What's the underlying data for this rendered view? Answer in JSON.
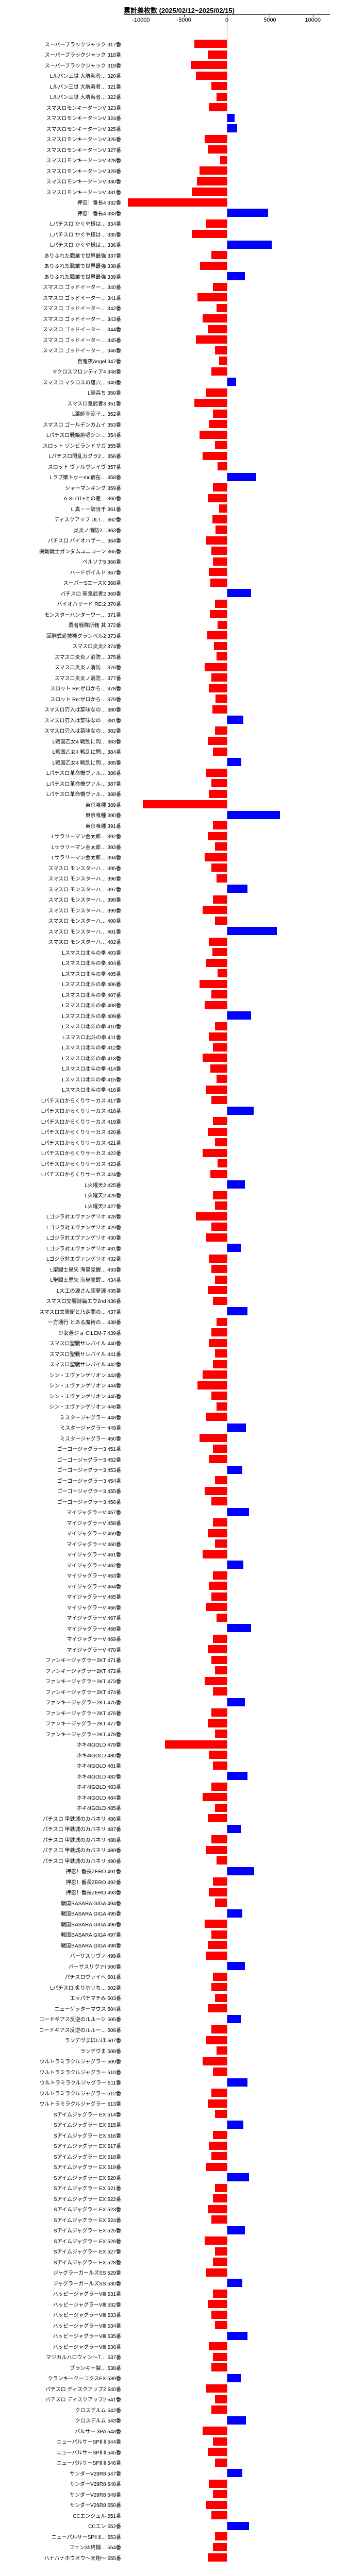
{
  "chart": {
    "title": "累計差枚数 (2025/02/12~2025/02/15)",
    "title_fontsize": 13,
    "type": "bar-horizontal",
    "xmin": -12000,
    "xmax": 12000,
    "ticks": [
      -10000,
      -5000,
      0,
      5000,
      10000
    ],
    "colors": {
      "neg": "#ff0000",
      "pos": "#0000ff",
      "axis": "#000000",
      "bg": "#ffffff"
    },
    "label_fontsize": 10,
    "rows": [
      {
        "label": "スーパーブラックジャック 317番",
        "value": -3800
      },
      {
        "label": "スーパーブラックジャック 318番",
        "value": -2200
      },
      {
        "label": "スーパーブラックジャック 319番",
        "value": -4200
      },
      {
        "label": "Lルパン三世 大航海者… 320番",
        "value": -3600
      },
      {
        "label": "Lルパン三世 大航海者… 321番",
        "value": -1800
      },
      {
        "label": "Lルパン三世 大航海者… 322番",
        "value": -1200
      },
      {
        "label": "スマスロモンキーターンV 323番",
        "value": -2100
      },
      {
        "label": "スマスロモンキーターンV 324番",
        "value": 900
      },
      {
        "label": "スマスロモンキーターンV 325番",
        "value": 1200
      },
      {
        "label": "スマスロモンキーターンV 326番",
        "value": -2600
      },
      {
        "label": "スマスロモンキーターンV 327番",
        "value": -2200
      },
      {
        "label": "スマスロモンキーターンV 328番",
        "value": -800
      },
      {
        "label": "スマスロモンキーターンV 329番",
        "value": -3200
      },
      {
        "label": "スマスロモンキーターンV 330番",
        "value": -3500
      },
      {
        "label": "スマスロモンキーターンV 331番",
        "value": -4100
      },
      {
        "label": "押忍！番長4 332番",
        "value": -11500
      },
      {
        "label": "押忍！番長4 333番",
        "value": 4800
      },
      {
        "label": "Lパチスロ かぐや様は… 334番",
        "value": -2400
      },
      {
        "label": "Lパチスロ かぐや様は… 335番",
        "value": -4100
      },
      {
        "label": "Lパチスロ かぐや様は… 336番",
        "value": 5200
      },
      {
        "label": "ありふれた職業で世界最強 337番",
        "value": -1800
      },
      {
        "label": "ありふれた職業で世界最強 338番",
        "value": -3100
      },
      {
        "label": "ありふれた職業で世界最強 339番",
        "value": 2100
      },
      {
        "label": "スマスロ ゴッドイーター… 340番",
        "value": -1600
      },
      {
        "label": "スマスロ ゴッドイーター… 341番",
        "value": -3400
      },
      {
        "label": "スマスロ ゴッドイーター… 342番",
        "value": -1200
      },
      {
        "label": "スマスロ ゴッドイーター… 343番",
        "value": -2800
      },
      {
        "label": "スマスロ ゴッドイーター… 344番",
        "value": -2200
      },
      {
        "label": "スマスロ ゴッドイーター… 345番",
        "value": -3600
      },
      {
        "label": "スマスロ ゴッドイーター… 346番",
        "value": -1400
      },
      {
        "label": "百鬼夜Angel 347番",
        "value": -900
      },
      {
        "label": "マクロスフロンティア4 348番",
        "value": -1800
      },
      {
        "label": "スマスロ マクロスの落穴… 349番",
        "value": 1100
      },
      {
        "label": "L騎兵ち 350番",
        "value": -2400
      },
      {
        "label": "スマスロ鬼武者3 351番",
        "value": -3800
      },
      {
        "label": "L薬師寺涼子… 352番",
        "value": -1600
      },
      {
        "label": "スマスロ ゴールデンカムイ 353番",
        "value": -2100
      },
      {
        "label": "Lパチスロ戦姫絶唱シン… 354番",
        "value": -3200
      },
      {
        "label": "スロット ゾンビランドサガ 355番",
        "value": -1400
      },
      {
        "label": "Lパチスロ閃乱カグラ2… 356番",
        "value": -2800
      },
      {
        "label": "スロット ヴァルヴレイヴ 357番",
        "value": -1100
      },
      {
        "label": "Lラブ嬢トゥーmc宿在… 358番",
        "value": 3400
      },
      {
        "label": "シャーマンキング 359番",
        "value": -1600
      },
      {
        "label": "A-SLOT+との差… 360番",
        "value": -2200
      },
      {
        "label": "L 真・一騎当千 361番",
        "value": -900
      },
      {
        "label": "ディスクアップ ULT… 362番",
        "value": -1700
      },
      {
        "label": "炎炎ノ消防2…363番",
        "value": -1300
      },
      {
        "label": "パチスロ バイオハザー… 364番",
        "value": -2400
      },
      {
        "label": "機動戦士ガンダムユニコーン 365番",
        "value": -1800
      },
      {
        "label": "ペルソナ5 366番",
        "value": -1600
      },
      {
        "label": "ハードボイルド 367番",
        "value": -2100
      },
      {
        "label": "スーパーSエースX 368番",
        "value": -1900
      },
      {
        "label": "パチスロ 新鬼武者2 369番",
        "value": 2800
      },
      {
        "label": "バイオハザード RE:2 370番",
        "value": -1400
      },
      {
        "label": "モンスターハンターワー… 371番",
        "value": -2000
      },
      {
        "label": "勇者戦隊所轄 其 372番",
        "value": -1100
      },
      {
        "label": "回胴式遊技機グランベル2 373番",
        "value": -2300
      },
      {
        "label": "スマスロ炎炎2 374番",
        "value": -1500
      },
      {
        "label": "スマスロ炎炎ノ消防… 375番",
        "value": -1200
      },
      {
        "label": "スマスロ炎炎ノ消防… 376番",
        "value": -2600
      },
      {
        "label": "スマスロ炎炎ノ消防… 377番",
        "value": -1800
      },
      {
        "label": "スロット Re:ゼロから… 378番",
        "value": -2100
      },
      {
        "label": "スロット Re:ゼロから… 379番",
        "value": -1300
      },
      {
        "label": "スマスロ刃入は菜味なの… 380番",
        "value": -1700
      },
      {
        "label": "スマスロ刃入は菜味なの… 381番",
        "value": 1900
      },
      {
        "label": "スマスロ刃入は菜味なの… 382番",
        "value": -1400
      },
      {
        "label": "L戦国乙女4 戦乱に閃… 383番",
        "value": -2200
      },
      {
        "label": "L戦国乙女4 戦乱に閃… 384番",
        "value": -1600
      },
      {
        "label": "L戦国乙女4 戦乱に閃… 385番",
        "value": 1700
      },
      {
        "label": "Lパチスロ革命機ヴァル… 386番",
        "value": -2400
      },
      {
        "label": "Lパチスロ革命機ヴァル… 387番",
        "value": -1800
      },
      {
        "label": "Lパチスロ革命機ヴァル… 388番",
        "value": -2100
      },
      {
        "label": "東京喰種 389番",
        "value": -9800
      },
      {
        "label": "東京喰種 390番",
        "value": 6200
      },
      {
        "label": "東京喰種 391番",
        "value": -1600
      },
      {
        "label": "Lサラリーマン金太郎… 392番",
        "value": -2200
      },
      {
        "label": "Lサラリーマン金太郎… 393番",
        "value": -1400
      },
      {
        "label": "Lサラリーマン金太郎… 394番",
        "value": -2600
      },
      {
        "label": "スマスロ モンスターハ… 395番",
        "value": -1800
      },
      {
        "label": "スマスロ モンスターハ… 396番",
        "value": -1200
      },
      {
        "label": "スマスロ モンスターハ… 397番",
        "value": 2400
      },
      {
        "label": "スマスロ モンスターハ… 398番",
        "value": -1600
      },
      {
        "label": "スマスロ モンスターハ… 399番",
        "value": -2800
      },
      {
        "label": "スマスロ モンスターハ… 400番",
        "value": -1400
      },
      {
        "label": "スマスロ モンスターハ… 401番",
        "value": 5800
      },
      {
        "label": "スマスロ モンスターハ… 402番",
        "value": -2100
      },
      {
        "label": "Lスマスロ北斗の拳 403番",
        "value": -1700
      },
      {
        "label": "Lスマスロ北斗の拳 404番",
        "value": -2400
      },
      {
        "label": "Lスマスロ北斗の拳 405番",
        "value": -1100
      },
      {
        "label": "Lスマスロ北斗の拳 406番",
        "value": -3200
      },
      {
        "label": "Lスマスロ北斗の拳 407番",
        "value": -1800
      },
      {
        "label": "Lスマスロ北斗の拳 408番",
        "value": -2600
      },
      {
        "label": "Lスマスロ北斗の拳 409番",
        "value": 2800
      },
      {
        "label": "Lスマスロ北斗の拳 410番",
        "value": -1400
      },
      {
        "label": "Lスマスロ北斗の拳 411番",
        "value": -2100
      },
      {
        "label": "Lスマスロ北斗の拳 412番",
        "value": -1600
      },
      {
        "label": "Lスマスロ北斗の拳 413番",
        "value": -2800
      },
      {
        "label": "Lスマスロ北斗の拳 414番",
        "value": -1900
      },
      {
        "label": "Lスマスロ北斗の拳 415番",
        "value": -1200
      },
      {
        "label": "Lスマスロ北斗の拳 416番",
        "value": -2400
      },
      {
        "label": "Lパチスロからくりサーカス 417番",
        "value": -1800
      },
      {
        "label": "Lパチスロからくりサーカス 418番",
        "value": 3100
      },
      {
        "label": "Lパチスロからくりサーカス 419番",
        "value": -1600
      },
      {
        "label": "Lパチスロからくりサーカス 420番",
        "value": -2200
      },
      {
        "label": "Lパチスロからくりサーカス 421番",
        "value": -1400
      },
      {
        "label": "Lパチスロからくりサーカス 422番",
        "value": -2800
      },
      {
        "label": "Lパチスロからくりサーカス 423番",
        "value": -1100
      },
      {
        "label": "Lパチスロからくりサーカス 424番",
        "value": -1900
      },
      {
        "label": "L火曜天2 425番",
        "value": 2100
      },
      {
        "label": "L火曜天2 426番",
        "value": -1600
      },
      {
        "label": "L火曜天2 427番",
        "value": -1400
      },
      {
        "label": "Lゴジラ対エヴァンゲリオ 428番",
        "value": -3600
      },
      {
        "label": "Lゴジラ対エヴァンゲリオ 429番",
        "value": -1800
      },
      {
        "label": "Lゴジラ対エヴァンゲリオ 430番",
        "value": -2400
      },
      {
        "label": "Lゴジラ対エヴァンゲリオ 431番",
        "value": 1600
      },
      {
        "label": "Lゴジラ対エヴァンゲリオ 432番",
        "value": -2100
      },
      {
        "label": "L聖闘士星矢 海皇覚醒… 433番",
        "value": -1800
      },
      {
        "label": "L聖闘士星矢 海皇覚醒… 434番",
        "value": -1400
      },
      {
        "label": "L大工の源さん超夢源 435番",
        "value": -2200
      },
      {
        "label": "スマスロ交響詩篇エウ2nd 436番",
        "value": -1600
      },
      {
        "label": "スマスロ文豪艇と乃走闇の… 437番",
        "value": 2400
      },
      {
        "label": "一方通行 とある魔術の… 438番",
        "value": -1200
      },
      {
        "label": "少女蒼ジョ CILEM-7 439番",
        "value": -1800
      },
      {
        "label": "スマスロ聖戦サレバイル 440番",
        "value": -2100
      },
      {
        "label": "スマスロ聖戦サレバイル 441番",
        "value": -1400
      },
      {
        "label": "スマスロ聖戦サレバイル 442番",
        "value": -1600
      },
      {
        "label": "シン・エヴァンゲリオン 443番",
        "value": -2800
      },
      {
        "label": "シン・エヴァンゲリオン 444番",
        "value": -3400
      },
      {
        "label": "シン・エヴァンゲリオン 445番",
        "value": -1800
      },
      {
        "label": "シン・エヴァンゲリオン 446番",
        "value": -1200
      },
      {
        "label": "ミスタージャグラー 448番",
        "value": -2400
      },
      {
        "label": "ミスタージャグラー 449番",
        "value": 2200
      },
      {
        "label": "ミスタージャグラー 450番",
        "value": -3200
      },
      {
        "label": "ゴーゴージャグラー3 451番",
        "value": -1600
      },
      {
        "label": "ゴーゴージャグラー3 452番",
        "value": -2100
      },
      {
        "label": "ゴーゴージャグラー3 453番",
        "value": 1800
      },
      {
        "label": "ゴーゴージャグラー3 454番",
        "value": -1400
      },
      {
        "label": "ゴーゴージャグラー3 455番",
        "value": -2600
      },
      {
        "label": "ゴーゴージャグラー3 456番",
        "value": -1800
      },
      {
        "label": "マイジャグラーV 457番",
        "value": 2600
      },
      {
        "label": "マイジャグラーV 458番",
        "value": -1600
      },
      {
        "label": "マイジャグラーV 459番",
        "value": -2200
      },
      {
        "label": "マイジャグラーV 460番",
        "value": -1400
      },
      {
        "label": "マイジャグラーV 461番",
        "value": -2800
      },
      {
        "label": "マイジャグラーV 462番",
        "value": 1900
      },
      {
        "label": "マイジャグラーV 463番",
        "value": -1600
      },
      {
        "label": "マイジャグラーV 464番",
        "value": -2100
      },
      {
        "label": "マイジャグラーV 465番",
        "value": -1800
      },
      {
        "label": "マイジャグラーV 466番",
        "value": -2400
      },
      {
        "label": "マイジャグラーV 467番",
        "value": -1200
      },
      {
        "label": "マイジャグラーV 468番",
        "value": 2800
      },
      {
        "label": "マイジャグラーV 469番",
        "value": -1600
      },
      {
        "label": "マイジャグラーV 470番",
        "value": -2200
      },
      {
        "label": "ファンキージャグラー2KT 471番",
        "value": -1800
      },
      {
        "label": "ファンキージャグラー2KT 472番",
        "value": -1400
      },
      {
        "label": "ファンキージャグラー2KT 473番",
        "value": -2600
      },
      {
        "label": "ファンキージャグラー2KT 474番",
        "value": -1600
      },
      {
        "label": "ファンキージャグラー2KT 475番",
        "value": 2100
      },
      {
        "label": "ファンキージャグラー2KT 476番",
        "value": -1800
      },
      {
        "label": "ファンキージャグラー2KT 477番",
        "value": -2200
      },
      {
        "label": "ファンキージャグラー2KT 478番",
        "value": -1400
      },
      {
        "label": "ホキ4IGOLD 479番",
        "value": -7200
      },
      {
        "label": "ホキ4IGOLD 480番",
        "value": -2100
      },
      {
        "label": "ホキ4IGOLD 481番",
        "value": -1600
      },
      {
        "label": "ホキ4IGOLD 482番",
        "value": 2400
      },
      {
        "label": "ホキ4IGOLD 483番",
        "value": -1800
      },
      {
        "label": "ホキ4IGOLD 484番",
        "value": -2800
      },
      {
        "label": "ホキ4IGOLD 485番",
        "value": -1400
      },
      {
        "label": "パチスロ 甲鉄城のカバネリ 486番",
        "value": -2200
      },
      {
        "label": "パチスロ 甲鉄城のカバネリ 487番",
        "value": 1600
      },
      {
        "label": "パチスロ 甲鉄城のカバネリ 488番",
        "value": -1800
      },
      {
        "label": "パチスロ 甲鉄城のカバネリ 489番",
        "value": -2400
      },
      {
        "label": "パチスロ 甲鉄城のカバネリ 490番",
        "value": -1200
      },
      {
        "label": "押忍！番長ZERO 491番",
        "value": 3200
      },
      {
        "label": "押忍！番長ZERO 492番",
        "value": -1600
      },
      {
        "label": "押忍！番長ZERO 493番",
        "value": -2100
      },
      {
        "label": "戦国BASARA GIGA 494番",
        "value": -1400
      },
      {
        "label": "戦国BASARA GIGA 495番",
        "value": 1800
      },
      {
        "label": "戦国BASARA GIGA 496番",
        "value": -2600
      },
      {
        "label": "戦国BASARA GIGA 497番",
        "value": -1800
      },
      {
        "label": "戦国BASARA GIGA 498番",
        "value": -2200
      },
      {
        "label": "バーサスリヴァ 499番",
        "value": -2400
      },
      {
        "label": "バーサスリヴァI 500番",
        "value": 2100
      },
      {
        "label": "パチスロヴァイヘ 501番",
        "value": -1600
      },
      {
        "label": "Lパチスロ 炙りホリち… 502番",
        "value": -1800
      },
      {
        "label": "エッパチマチみ 503番",
        "value": -1400
      },
      {
        "label": "ニューゲッターマウス 504番",
        "value": -2200
      },
      {
        "label": "コードギアス反逆のルルーシ 505番",
        "value": 1600
      },
      {
        "label": "コードギアス反逆のルルー… 506番",
        "value": -1800
      },
      {
        "label": "ランデヴまほいほ 507番",
        "value": -2400
      },
      {
        "label": "ランデヴま 508番",
        "value": -1200
      },
      {
        "label": "ウルトラミラクルジャグラー 509番",
        "value": -2800
      },
      {
        "label": "ウルトラミラクルジャグラー 510番",
        "value": -1600
      },
      {
        "label": "ウルトラミラクルジャグラー 511番",
        "value": 2400
      },
      {
        "label": "ウルトラミラクルジャグラー 512番",
        "value": -1800
      },
      {
        "label": "ウルトラミラクルジャグラー 513番",
        "value": -2200
      },
      {
        "label": "Sアイムジャグラー EX 514番",
        "value": -1400
      },
      {
        "label": "Sアイムジャグラー EX 515番",
        "value": 1900
      },
      {
        "label": "Sアイムジャグラー EX 516番",
        "value": -1600
      },
      {
        "label": "Sアイムジャグラー EX 517番",
        "value": -2100
      },
      {
        "label": "Sアイムジャグラー EX 518番",
        "value": -1800
      },
      {
        "label": "Sアイムジャグラー EX 519番",
        "value": -2400
      },
      {
        "label": "Sアイムジャグラー EX 520番",
        "value": 2600
      },
      {
        "label": "Sアイムジャグラー EX 521番",
        "value": -1400
      },
      {
        "label": "Sアイムジャグラー EX 522番",
        "value": -1600
      },
      {
        "label": "Sアイムジャグラー EX 523番",
        "value": -2200
      },
      {
        "label": "Sアイムジャグラー EX 524番",
        "value": -1800
      },
      {
        "label": "Sアイムジャグラー EX 525番",
        "value": 2100
      },
      {
        "label": "Sアイムジャグラー EX 526番",
        "value": -2600
      },
      {
        "label": "Sアイムジャグラー EX 527番",
        "value": -1400
      },
      {
        "label": "Sアイムジャグラー EX 528番",
        "value": -1600
      },
      {
        "label": "ジャグラーガールズSS 529番",
        "value": -2400
      },
      {
        "label": "ジャグラーガールズSS 530番",
        "value": 1800
      },
      {
        "label": "ハッピージャグラーVⅢ 531番",
        "value": -1600
      },
      {
        "label": "ハッピージャグラーVⅢ 532番",
        "value": -2200
      },
      {
        "label": "ハッピージャグラーVⅢ 533番",
        "value": -1800
      },
      {
        "label": "ハッピージャグラーVⅢ 534番",
        "value": -1400
      },
      {
        "label": "ハッピージャグラーVⅢ 535番",
        "value": 2400
      },
      {
        "label": "ハッピージャグラーVⅢ 536番",
        "value": -2100
      },
      {
        "label": "マジカルハロウィン〜T… 537番",
        "value": -1600
      },
      {
        "label": "ブランキー製… 538番",
        "value": -1800
      },
      {
        "label": "クランキークーコクスEX 539番",
        "value": 1600
      },
      {
        "label": "パチスロ ディスクアップ2 540番",
        "value": -2400
      },
      {
        "label": "パチスロ ディスクアップ2 541番",
        "value": -1400
      },
      {
        "label": "クロスデルム 542番",
        "value": -1800
      },
      {
        "label": "クロスデルム 543番",
        "value": 2200
      },
      {
        "label": "パルサー 3PA 543番",
        "value": -2800
      },
      {
        "label": "ニューパルサーSPⅡ Ⅱ 544番",
        "value": -1600
      },
      {
        "label": "ニューパルサーSPⅡ Ⅱ 545番",
        "value": -2200
      },
      {
        "label": "ニューパルサーSPⅡ Ⅱ 546番",
        "value": -1400
      },
      {
        "label": "サンダーV29R8 547番",
        "value": 1800
      },
      {
        "label": "サンダーV29R8 548番",
        "value": -2100
      },
      {
        "label": "サンダーV29R8 549番",
        "value": -1600
      },
      {
        "label": "サンダーV29R8 550番",
        "value": -2400
      },
      {
        "label": "CCエンジェル 551番",
        "value": -1800
      },
      {
        "label": "CCエン 552番",
        "value": 2600
      },
      {
        "label": "ニューパルサーSPⅡ Ⅱ… 553番",
        "value": -1400
      },
      {
        "label": "フェン35終鋼… 554番",
        "value": -1600
      },
      {
        "label": "ハナハナホウオウ〜天翔〜 555番",
        "value": -2200
      }
    ]
  }
}
